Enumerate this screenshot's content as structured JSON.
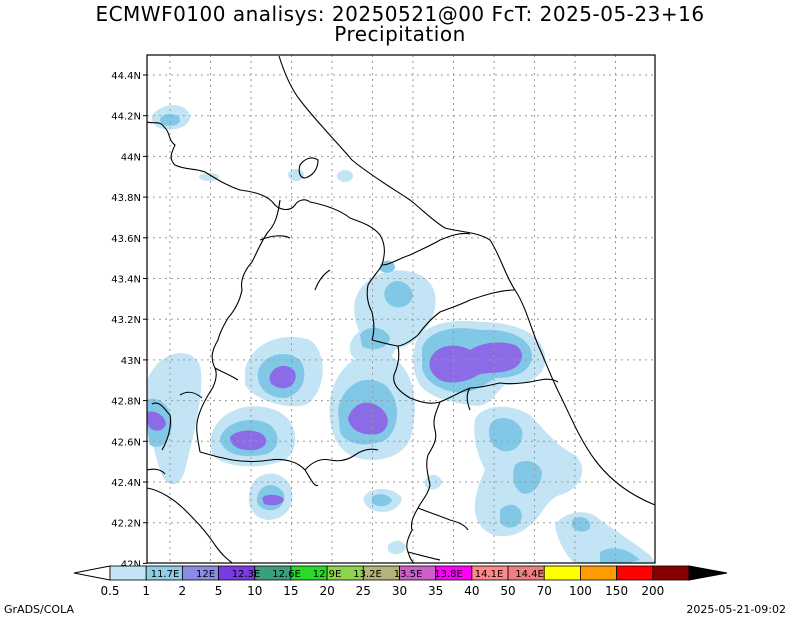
{
  "title": {
    "line1": "ECMWF0100 analisys: 20250521@00 FcT: 2025-05-23+16",
    "line2": "Precipitation"
  },
  "axes": {
    "lat_labels": [
      "44.4N",
      "44.2N",
      "44N",
      "43.8N",
      "43.6N",
      "43.4N",
      "43.2N",
      "43N",
      "42.8N",
      "42.6N",
      "42.4N",
      "42.2N",
      "42N"
    ]
  },
  "colorbar": {
    "boundaries": [
      "0.5",
      "1",
      "2",
      "5",
      "10",
      "15",
      "20",
      "25",
      "30",
      "35",
      "40",
      "50",
      "70",
      "100",
      "150",
      "200"
    ],
    "box_labels": [
      "11.7E",
      "12E",
      "12.3E",
      "12.6E",
      "12.9E",
      "13.2E",
      "13.5E",
      "13.8E",
      "14.1E",
      "14.4E"
    ],
    "colors": [
      "#c2e4f4",
      "#8ecfe8",
      "#8c8ce6",
      "#7a3ce0",
      "#3aa07c",
      "#26dc26",
      "#8ed44a",
      "#b4b478",
      "#cc60c8",
      "#ff00ff",
      "#ff8888",
      "#f08080",
      "#ffff00",
      "#ff9c00",
      "#ff0000",
      "#880000"
    ]
  },
  "precip_colors": {
    "light": "#c2e4f4",
    "medium": "#80c8e6",
    "heavy": "#8c6ce6"
  },
  "footer": {
    "left": "GrADS/COLA",
    "right": "2025-05-21-09:02"
  }
}
